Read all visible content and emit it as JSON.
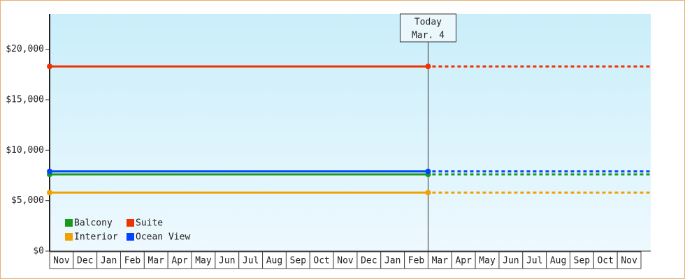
{
  "chart_data": {
    "type": "line",
    "categories": [
      "Nov",
      "Dec",
      "Jan",
      "Feb",
      "Mar",
      "Apr",
      "May",
      "Jun",
      "Jul",
      "Aug",
      "Sep",
      "Oct",
      "Nov",
      "Dec",
      "Jan",
      "Feb",
      "Mar",
      "Apr",
      "May",
      "Jun",
      "Jul",
      "Aug",
      "Sep",
      "Oct",
      "Nov"
    ],
    "series": [
      {
        "name": "Balcony",
        "color": "#1a9a1a",
        "values": [
          7600,
          7600,
          7600,
          7600,
          7600,
          7600,
          7600,
          7600,
          7600,
          7600,
          7600,
          7600,
          7600,
          7600,
          7600,
          7600,
          7600,
          null,
          null,
          null,
          null,
          null,
          null,
          null,
          null
        ]
      },
      {
        "name": "Suite",
        "color": "#ee3300",
        "values": [
          18300,
          18300,
          18300,
          18300,
          18300,
          18300,
          18300,
          18300,
          18300,
          18300,
          18300,
          18300,
          18300,
          18300,
          18300,
          18300,
          18300,
          null,
          null,
          null,
          null,
          null,
          null,
          null,
          null
        ]
      },
      {
        "name": "Interior",
        "color": "#f0a000",
        "values": [
          5800,
          5800,
          5800,
          5800,
          5800,
          5800,
          5800,
          5800,
          5800,
          5800,
          5800,
          5800,
          5800,
          5800,
          5800,
          5800,
          5800,
          null,
          null,
          null,
          null,
          null,
          null,
          null,
          null
        ]
      },
      {
        "name": "Ocean View",
        "color": "#0044ff",
        "values": [
          7900,
          7900,
          7900,
          7900,
          7900,
          7900,
          7900,
          7900,
          7900,
          7900,
          7900,
          7900,
          7900,
          7900,
          7900,
          7900,
          7900,
          null,
          null,
          null,
          null,
          null,
          null,
          null,
          null
        ]
      }
    ],
    "annotation": [
      "Today",
      "Mar. 4"
    ],
    "ylim": [
      0,
      23500
    ],
    "yticks": [
      {
        "value": 0,
        "label": "$0"
      },
      {
        "value": 5000,
        "label": "$5,000"
      },
      {
        "value": 10000,
        "label": "$10,000"
      },
      {
        "value": 15000,
        "label": "$15,000"
      },
      {
        "value": 20000,
        "label": "$20,000"
      }
    ],
    "grid": false,
    "legend": "bottom-left"
  }
}
